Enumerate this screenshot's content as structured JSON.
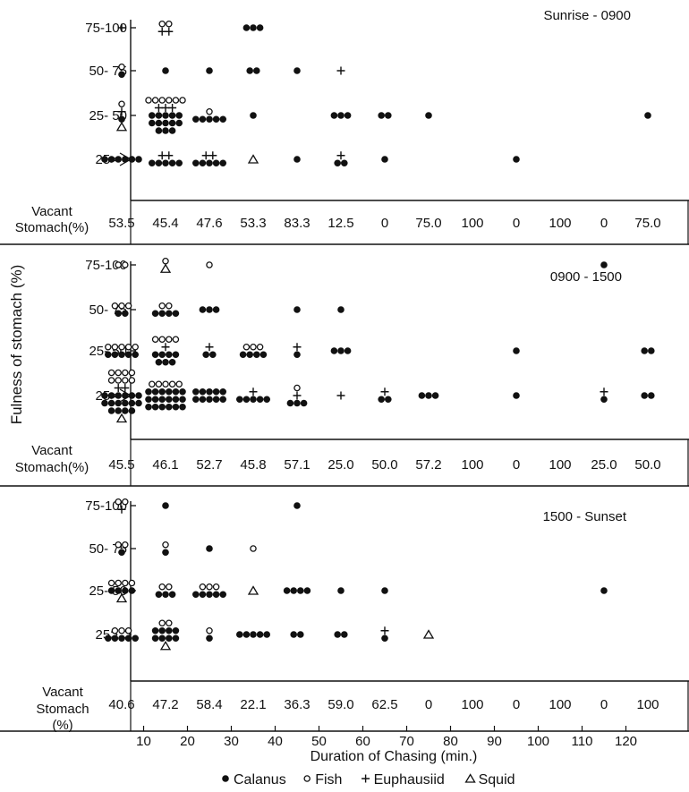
{
  "chart_data": {
    "type": "scatter",
    "ylabel": "Fulness of stomach (%)",
    "xlabel": "Duration of Chasing (min.)",
    "x_ticks": [
      10,
      20,
      30,
      40,
      50,
      60,
      70,
      80,
      90,
      100,
      110,
      120
    ],
    "y_categories": [
      "75-100",
      "50- 75",
      "25- 50",
      "25>"
    ],
    "vacant_label": [
      "Vacant",
      "Stomach(%)"
    ],
    "vacant_label_bottom": [
      "Vacant",
      "Stomach",
      "(%)"
    ],
    "legend": [
      {
        "symbol": "calanus",
        "label": "Calanus"
      },
      {
        "symbol": "fish",
        "label": "Fish"
      },
      {
        "symbol": "euphausiid",
        "label": "Euphausiid"
      },
      {
        "symbol": "squid",
        "label": "Squid"
      }
    ],
    "panels": [
      {
        "title": "Sunrise - 0900",
        "vacant": [
          "53.5",
          "45.4",
          "47.6",
          "53.3",
          "83.3",
          "12.5",
          "0",
          "75.0",
          "100",
          "0",
          "100",
          "0",
          "75.0"
        ],
        "groups": [
          {
            "x": 5,
            "cat": "75-100",
            "counts": {
              "calanus": 0,
              "fish": 0,
              "euphausiid": 1,
              "squid": 0
            }
          },
          {
            "x": 15,
            "cat": "75-100",
            "counts": {
              "calanus": 0,
              "fish": 2,
              "euphausiid": 2,
              "squid": 0
            }
          },
          {
            "x": 35,
            "cat": "75-100",
            "counts": {
              "calanus": 3,
              "fish": 0,
              "euphausiid": 0,
              "squid": 0
            }
          },
          {
            "x": 5,
            "cat": "50- 75",
            "counts": {
              "calanus": 1,
              "fish": 1,
              "euphausiid": 0,
              "squid": 0
            }
          },
          {
            "x": 15,
            "cat": "50- 75",
            "counts": {
              "calanus": 1,
              "fish": 0,
              "euphausiid": 0,
              "squid": 0
            }
          },
          {
            "x": 25,
            "cat": "50- 75",
            "counts": {
              "calanus": 1,
              "fish": 0,
              "euphausiid": 0,
              "squid": 0
            }
          },
          {
            "x": 35,
            "cat": "50- 75",
            "counts": {
              "calanus": 2,
              "fish": 0,
              "euphausiid": 0,
              "squid": 0
            }
          },
          {
            "x": 45,
            "cat": "50- 75",
            "counts": {
              "calanus": 1,
              "fish": 0,
              "euphausiid": 0,
              "squid": 0
            }
          },
          {
            "x": 55,
            "cat": "50- 75",
            "counts": {
              "calanus": 0,
              "fish": 0,
              "euphausiid": 1,
              "squid": 0
            }
          },
          {
            "x": 5,
            "cat": "25- 50",
            "counts": {
              "calanus": 1,
              "fish": 1,
              "euphausiid": 1,
              "squid": 1
            }
          },
          {
            "x": 15,
            "cat": "25- 50",
            "counts": {
              "calanus": 13,
              "fish": 6,
              "euphausiid": 3,
              "squid": 0
            }
          },
          {
            "x": 25,
            "cat": "25- 50",
            "counts": {
              "calanus": 5,
              "fish": 1,
              "euphausiid": 0,
              "squid": 0
            }
          },
          {
            "x": 35,
            "cat": "25- 50",
            "counts": {
              "calanus": 1,
              "fish": 0,
              "euphausiid": 0,
              "squid": 0
            }
          },
          {
            "x": 55,
            "cat": "25- 50",
            "counts": {
              "calanus": 3,
              "fish": 0,
              "euphausiid": 0,
              "squid": 0
            }
          },
          {
            "x": 65,
            "cat": "25- 50",
            "counts": {
              "calanus": 2,
              "fish": 0,
              "euphausiid": 0,
              "squid": 0
            }
          },
          {
            "x": 75,
            "cat": "25- 50",
            "counts": {
              "calanus": 1,
              "fish": 0,
              "euphausiid": 0,
              "squid": 0
            }
          },
          {
            "x": 125,
            "cat": "25- 50",
            "counts": {
              "calanus": 1,
              "fish": 0,
              "euphausiid": 0,
              "squid": 0
            }
          },
          {
            "x": 5,
            "cat": "25>",
            "counts": {
              "calanus": 6,
              "fish": 0,
              "euphausiid": 0,
              "squid": 0
            }
          },
          {
            "x": 15,
            "cat": "25>",
            "counts": {
              "calanus": 5,
              "fish": 0,
              "euphausiid": 2,
              "squid": 0
            }
          },
          {
            "x": 25,
            "cat": "25>",
            "counts": {
              "calanus": 5,
              "fish": 0,
              "euphausiid": 2,
              "squid": 0
            }
          },
          {
            "x": 35,
            "cat": "25>",
            "counts": {
              "calanus": 0,
              "fish": 0,
              "euphausiid": 0,
              "squid": 1
            }
          },
          {
            "x": 45,
            "cat": "25>",
            "counts": {
              "calanus": 1,
              "fish": 0,
              "euphausiid": 0,
              "squid": 0
            }
          },
          {
            "x": 55,
            "cat": "25>",
            "counts": {
              "calanus": 2,
              "fish": 0,
              "euphausiid": 1,
              "squid": 0
            }
          },
          {
            "x": 65,
            "cat": "25>",
            "counts": {
              "calanus": 1,
              "fish": 0,
              "euphausiid": 0,
              "squid": 0
            }
          },
          {
            "x": 95,
            "cat": "25>",
            "counts": {
              "calanus": 1,
              "fish": 0,
              "euphausiid": 0,
              "squid": 0
            }
          }
        ]
      },
      {
        "title": "0900 - 1500",
        "vacant": [
          "45.5",
          "46.1",
          "52.7",
          "45.8",
          "57.1",
          "25.0",
          "50.0",
          "57.2",
          "100",
          "0",
          "100",
          "25.0",
          "50.0"
        ],
        "groups": [
          {
            "x": 5,
            "cat": "75-100",
            "counts": {
              "calanus": 0,
              "fish": 2,
              "euphausiid": 0,
              "squid": 0
            }
          },
          {
            "x": 15,
            "cat": "75-100",
            "counts": {
              "calanus": 0,
              "fish": 1,
              "euphausiid": 0,
              "squid": 1
            }
          },
          {
            "x": 25,
            "cat": "75-100",
            "counts": {
              "calanus": 0,
              "fish": 1,
              "euphausiid": 0,
              "squid": 0
            }
          },
          {
            "x": 115,
            "cat": "75-100",
            "counts": {
              "calanus": 1,
              "fish": 0,
              "euphausiid": 0,
              "squid": 0
            }
          },
          {
            "x": 5,
            "cat": "50- 75",
            "counts": {
              "calanus": 2,
              "fish": 3,
              "euphausiid": 0,
              "squid": 0
            }
          },
          {
            "x": 15,
            "cat": "50- 75",
            "counts": {
              "calanus": 4,
              "fish": 2,
              "euphausiid": 0,
              "squid": 0
            }
          },
          {
            "x": 25,
            "cat": "50- 75",
            "counts": {
              "calanus": 3,
              "fish": 0,
              "euphausiid": 0,
              "squid": 0
            }
          },
          {
            "x": 45,
            "cat": "50- 75",
            "counts": {
              "calanus": 1,
              "fish": 0,
              "euphausiid": 0,
              "squid": 0
            }
          },
          {
            "x": 55,
            "cat": "50- 75",
            "counts": {
              "calanus": 1,
              "fish": 0,
              "euphausiid": 0,
              "squid": 0
            }
          },
          {
            "x": 5,
            "cat": "25- 50",
            "counts": {
              "calanus": 5,
              "fish": 5,
              "euphausiid": 0,
              "squid": 0
            }
          },
          {
            "x": 15,
            "cat": "25- 50",
            "counts": {
              "calanus": 7,
              "fish": 4,
              "euphausiid": 1,
              "squid": 0
            }
          },
          {
            "x": 25,
            "cat": "25- 50",
            "counts": {
              "calanus": 2,
              "fish": 0,
              "euphausiid": 1,
              "squid": 0
            }
          },
          {
            "x": 35,
            "cat": "25- 50",
            "counts": {
              "calanus": 4,
              "fish": 3,
              "euphausiid": 0,
              "squid": 0
            }
          },
          {
            "x": 45,
            "cat": "25- 50",
            "counts": {
              "calanus": 1,
              "fish": 0,
              "euphausiid": 1,
              "squid": 0
            }
          },
          {
            "x": 55,
            "cat": "25- 50",
            "counts": {
              "calanus": 3,
              "fish": 0,
              "euphausiid": 0,
              "squid": 0
            }
          },
          {
            "x": 95,
            "cat": "25- 50",
            "counts": {
              "calanus": 1,
              "fish": 0,
              "euphausiid": 0,
              "squid": 0
            }
          },
          {
            "x": 125,
            "cat": "25- 50",
            "counts": {
              "calanus": 2,
              "fish": 0,
              "euphausiid": 0,
              "squid": 0
            }
          },
          {
            "x": 5,
            "cat": "25>",
            "counts": {
              "calanus": 16,
              "fish": 8,
              "euphausiid": 2,
              "squid": 1
            }
          },
          {
            "x": 15,
            "cat": "25>",
            "counts": {
              "calanus": 18,
              "fish": 5,
              "euphausiid": 0,
              "squid": 0
            }
          },
          {
            "x": 25,
            "cat": "25>",
            "counts": {
              "calanus": 10,
              "fish": 0,
              "euphausiid": 0,
              "squid": 0
            }
          },
          {
            "x": 35,
            "cat": "25>",
            "counts": {
              "calanus": 5,
              "fish": 0,
              "euphausiid": 1,
              "squid": 0
            }
          },
          {
            "x": 45,
            "cat": "25>",
            "counts": {
              "calanus": 3,
              "fish": 1,
              "euphausiid": 1,
              "squid": 0
            }
          },
          {
            "x": 55,
            "cat": "25>",
            "counts": {
              "calanus": 0,
              "fish": 0,
              "euphausiid": 1,
              "squid": 0
            }
          },
          {
            "x": 65,
            "cat": "25>",
            "counts": {
              "calanus": 2,
              "fish": 0,
              "euphausiid": 1,
              "squid": 0
            }
          },
          {
            "x": 75,
            "cat": "25>",
            "counts": {
              "calanus": 3,
              "fish": 0,
              "euphausiid": 0,
              "squid": 0
            }
          },
          {
            "x": 95,
            "cat": "25>",
            "counts": {
              "calanus": 1,
              "fish": 0,
              "euphausiid": 0,
              "squid": 0
            }
          },
          {
            "x": 115,
            "cat": "25>",
            "counts": {
              "calanus": 1,
              "fish": 0,
              "euphausiid": 1,
              "squid": 0
            }
          },
          {
            "x": 125,
            "cat": "25>",
            "counts": {
              "calanus": 2,
              "fish": 0,
              "euphausiid": 0,
              "squid": 0
            }
          }
        ]
      },
      {
        "title": "1500 - Sunset",
        "vacant": [
          "40.6",
          "47.2",
          "58.4",
          "22.1",
          "36.3",
          "59.0",
          "62.5",
          "0",
          "100",
          "0",
          "100",
          "0",
          "100"
        ],
        "groups": [
          {
            "x": 5,
            "cat": "75-100",
            "counts": {
              "calanus": 0,
              "fish": 2,
              "euphausiid": 1,
              "squid": 0
            }
          },
          {
            "x": 15,
            "cat": "75-100",
            "counts": {
              "calanus": 1,
              "fish": 0,
              "euphausiid": 0,
              "squid": 0
            }
          },
          {
            "x": 45,
            "cat": "75-100",
            "counts": {
              "calanus": 1,
              "fish": 0,
              "euphausiid": 0,
              "squid": 0
            }
          },
          {
            "x": 5,
            "cat": "50- 75",
            "counts": {
              "calanus": 1,
              "fish": 2,
              "euphausiid": 0,
              "squid": 0
            }
          },
          {
            "x": 15,
            "cat": "50- 75",
            "counts": {
              "calanus": 1,
              "fish": 1,
              "euphausiid": 0,
              "squid": 0
            }
          },
          {
            "x": 25,
            "cat": "50- 75",
            "counts": {
              "calanus": 1,
              "fish": 0,
              "euphausiid": 0,
              "squid": 0
            }
          },
          {
            "x": 35,
            "cat": "50- 75",
            "counts": {
              "calanus": 0,
              "fish": 1,
              "euphausiid": 0,
              "squid": 0
            }
          },
          {
            "x": 5,
            "cat": "25- 50",
            "counts": {
              "calanus": 4,
              "fish": 4,
              "euphausiid": 0,
              "squid": 1
            }
          },
          {
            "x": 15,
            "cat": "25- 50",
            "counts": {
              "calanus": 3,
              "fish": 2,
              "euphausiid": 0,
              "squid": 0
            }
          },
          {
            "x": 25,
            "cat": "25- 50",
            "counts": {
              "calanus": 5,
              "fish": 3,
              "euphausiid": 0,
              "squid": 0
            }
          },
          {
            "x": 35,
            "cat": "25- 50",
            "counts": {
              "calanus": 0,
              "fish": 0,
              "euphausiid": 0,
              "squid": 1
            }
          },
          {
            "x": 45,
            "cat": "25- 50",
            "counts": {
              "calanus": 4,
              "fish": 0,
              "euphausiid": 0,
              "squid": 0
            }
          },
          {
            "x": 55,
            "cat": "25- 50",
            "counts": {
              "calanus": 1,
              "fish": 0,
              "euphausiid": 0,
              "squid": 0
            }
          },
          {
            "x": 65,
            "cat": "25- 50",
            "counts": {
              "calanus": 1,
              "fish": 0,
              "euphausiid": 0,
              "squid": 0
            }
          },
          {
            "x": 115,
            "cat": "25- 50",
            "counts": {
              "calanus": 1,
              "fish": 0,
              "euphausiid": 0,
              "squid": 0
            }
          },
          {
            "x": 5,
            "cat": "25>",
            "counts": {
              "calanus": 5,
              "fish": 3,
              "euphausiid": 0,
              "squid": 0
            }
          },
          {
            "x": 15,
            "cat": "25>",
            "counts": {
              "calanus": 8,
              "fish": 2,
              "euphausiid": 0,
              "squid": 1
            }
          },
          {
            "x": 25,
            "cat": "25>",
            "counts": {
              "calanus": 1,
              "fish": 1,
              "euphausiid": 0,
              "squid": 0
            }
          },
          {
            "x": 35,
            "cat": "25>",
            "counts": {
              "calanus": 5,
              "fish": 0,
              "euphausiid": 0,
              "squid": 0
            }
          },
          {
            "x": 45,
            "cat": "25>",
            "counts": {
              "calanus": 2,
              "fish": 0,
              "euphausiid": 0,
              "squid": 0
            }
          },
          {
            "x": 55,
            "cat": "25>",
            "counts": {
              "calanus": 2,
              "fish": 0,
              "euphausiid": 0,
              "squid": 0
            }
          },
          {
            "x": 65,
            "cat": "25>",
            "counts": {
              "calanus": 1,
              "fish": 0,
              "euphausiid": 1,
              "squid": 0
            }
          },
          {
            "x": 75,
            "cat": "25>",
            "counts": {
              "calanus": 0,
              "fish": 0,
              "euphausiid": 0,
              "squid": 1
            }
          }
        ]
      }
    ]
  }
}
